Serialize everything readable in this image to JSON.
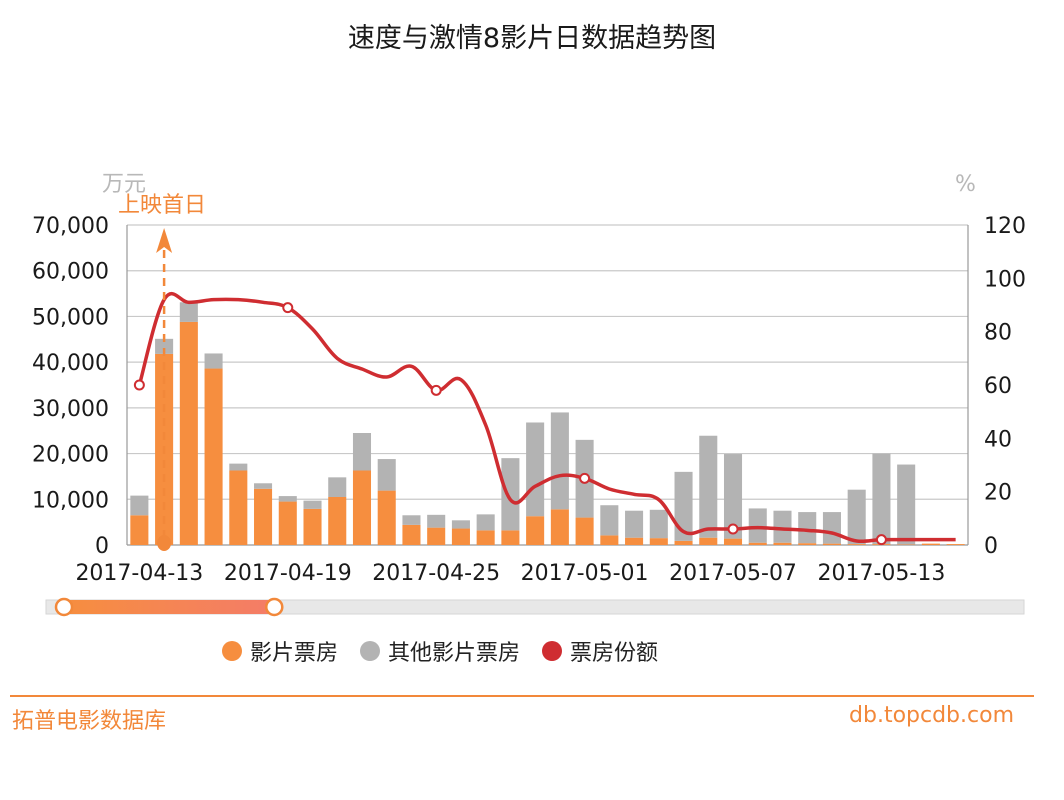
{
  "title": "速度与激情8影片日数据趋势图",
  "footer": {
    "left": "拓普电影数据库",
    "right": "db.topcdb.com"
  },
  "colors": {
    "film": "#f68e3f",
    "other": "#b3b3b3",
    "share": "#cf2d31",
    "accent": "#f2883a"
  },
  "annotation": {
    "label": "上映首日",
    "category": "2017-04-14"
  },
  "chart_data": {
    "type": "bar",
    "title": "速度与激情8影片日数据趋势图",
    "y_left_unit": "万元",
    "y_right_unit": "%",
    "ylim_left": [
      0,
      70000
    ],
    "ylim_right": [
      0,
      120
    ],
    "y_left_ticks": [
      "0",
      "10,000",
      "20,000",
      "30,000",
      "40,000",
      "50,000",
      "60,000",
      "70,000"
    ],
    "y_right_ticks": [
      "0",
      "20",
      "40",
      "60",
      "80",
      "100",
      "120"
    ],
    "x_tick_labels": [
      {
        "category": "2017-04-13",
        "label": "2017-04-13"
      },
      {
        "category": "2017-04-19",
        "label": "2017-04-19"
      },
      {
        "category": "2017-04-25",
        "label": "2017-04-25"
      },
      {
        "category": "2017-05-01",
        "label": "2017-05-01"
      },
      {
        "category": "2017-05-07",
        "label": "2017-05-07"
      },
      {
        "category": "2017-05-13",
        "label": "2017-05-13"
      }
    ],
    "categories": [
      "2017-04-13",
      "2017-04-14",
      "2017-04-15",
      "2017-04-16",
      "2017-04-17",
      "2017-04-18",
      "2017-04-19",
      "2017-04-20",
      "2017-04-21",
      "2017-04-22",
      "2017-04-23",
      "2017-04-24",
      "2017-04-25",
      "2017-04-26",
      "2017-04-27",
      "2017-04-28",
      "2017-04-29",
      "2017-04-30",
      "2017-05-01",
      "2017-05-02",
      "2017-05-03",
      "2017-05-04",
      "2017-05-05",
      "2017-05-06",
      "2017-05-07",
      "2017-05-08",
      "2017-05-09",
      "2017-05-10",
      "2017-05-11",
      "2017-05-12",
      "2017-05-13",
      "2017-05-14",
      "2017-05-15",
      "2017-05-16"
    ],
    "series": [
      {
        "name": "影片票房",
        "kind": "bar",
        "axis": "left",
        "values": [
          6500,
          41800,
          48800,
          38600,
          16300,
          12300,
          9500,
          7900,
          10500,
          16300,
          11900,
          4400,
          3800,
          3600,
          3200,
          3200,
          6300,
          7800,
          6000,
          2100,
          1600,
          1500,
          900,
          1600,
          1400,
          500,
          500,
          400,
          300,
          200,
          200,
          100,
          300,
          200
        ]
      },
      {
        "name": "其他影片票房",
        "kind": "bar",
        "axis": "left",
        "values": [
          4300,
          3300,
          4300,
          3300,
          1500,
          1200,
          1200,
          1800,
          4300,
          8200,
          6900,
          2100,
          2800,
          1800,
          3500,
          15800,
          20500,
          21200,
          17000,
          6600,
          5900,
          6200,
          15100,
          22300,
          18500,
          7500,
          7000,
          6800,
          6900,
          11900,
          19800,
          17500,
          0,
          0
        ]
      },
      {
        "name": "票房份额",
        "kind": "line",
        "axis": "right",
        "values": [
          60,
          92,
          91,
          92,
          92,
          91,
          89,
          81,
          70,
          66,
          63,
          67,
          58,
          62,
          45,
          17,
          22,
          26,
          25,
          21,
          19,
          17,
          5,
          6,
          6,
          6.5,
          6,
          5.5,
          4.5,
          1.5,
          2,
          2,
          2,
          2
        ]
      }
    ],
    "line_markers": [
      "2017-04-13",
      "2017-04-19",
      "2017-04-25",
      "2017-05-01",
      "2017-05-07",
      "2017-05-13"
    ],
    "legend": {
      "placement": "bottom"
    },
    "grid": true,
    "zoom_slider": {
      "start": 0,
      "end": 0.215
    }
  }
}
